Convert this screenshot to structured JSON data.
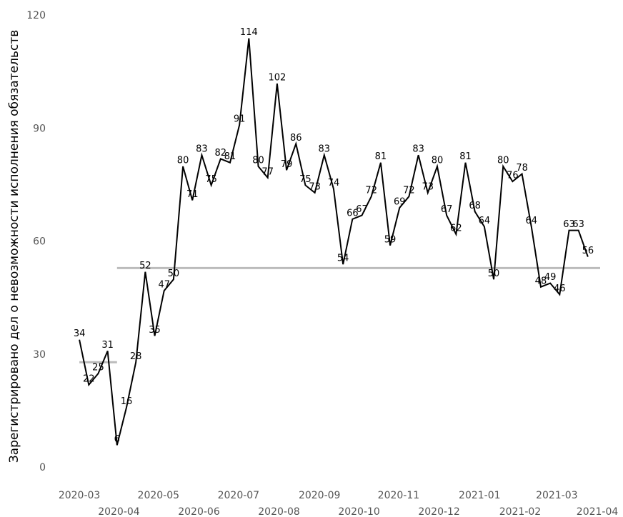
{
  "chart_data": {
    "type": "line",
    "y_label": "Зарегистрировано дел о невозможности исполнения обязательств",
    "x": [
      0,
      1,
      2,
      3,
      4,
      5,
      6,
      7,
      8,
      9,
      10,
      11,
      12,
      13,
      14,
      15,
      16,
      17,
      18,
      19,
      20,
      21,
      22,
      23,
      24,
      25,
      26,
      27,
      28,
      29,
      30,
      31,
      32,
      33,
      34,
      35,
      36,
      37,
      38,
      39,
      40,
      41,
      42,
      43,
      44,
      45,
      46,
      47,
      48,
      49,
      50,
      51,
      52,
      53,
      54
    ],
    "series": [
      {
        "name": "Зарегистрировано дел",
        "color": "#000000",
        "values": [
          34,
          22,
          25,
          31,
          6,
          16,
          28,
          52,
          35,
          47,
          50,
          80,
          71,
          83,
          75,
          82,
          81,
          91,
          114,
          80,
          77,
          102,
          79,
          86,
          75,
          73,
          83,
          74,
          54,
          66,
          67,
          72,
          81,
          59,
          69,
          72,
          83,
          73,
          80,
          67,
          62,
          81,
          68,
          64,
          50,
          80,
          76,
          78,
          64,
          48,
          49,
          46,
          63,
          63,
          56
        ]
      }
    ],
    "reference_lines": [
      {
        "value": 28,
        "x": [
          0,
          4
        ],
        "color": "#bbbbbb"
      },
      {
        "value": 53,
        "x": [
          4,
          55.3
        ],
        "color": "#bbbbbb"
      }
    ],
    "xlim": [
      -1.6,
      55.3
    ],
    "xticks": [
      {
        "value": 0,
        "label": "2020-03"
      },
      {
        "value": 4.2,
        "label": "2020-04"
      },
      {
        "value": 8.4,
        "label": "2020-05"
      },
      {
        "value": 12.7,
        "label": "2020-06"
      },
      {
        "value": 16.9,
        "label": "2020-07"
      },
      {
        "value": 21.2,
        "label": "2020-08"
      },
      {
        "value": 25.5,
        "label": "2020-09"
      },
      {
        "value": 29.7,
        "label": "2020-10"
      },
      {
        "value": 33.9,
        "label": "2020-11"
      },
      {
        "value": 38.2,
        "label": "2020-12"
      },
      {
        "value": 42.5,
        "label": "2021-01"
      },
      {
        "value": 46.8,
        "label": "2021-02"
      },
      {
        "value": 50.7,
        "label": "2021-03"
      },
      {
        "value": 55.0,
        "label": "2021-04"
      }
    ],
    "ylim": [
      0,
      120
    ],
    "yticks": [
      0,
      30,
      60,
      90,
      120
    ],
    "grid": false
  }
}
